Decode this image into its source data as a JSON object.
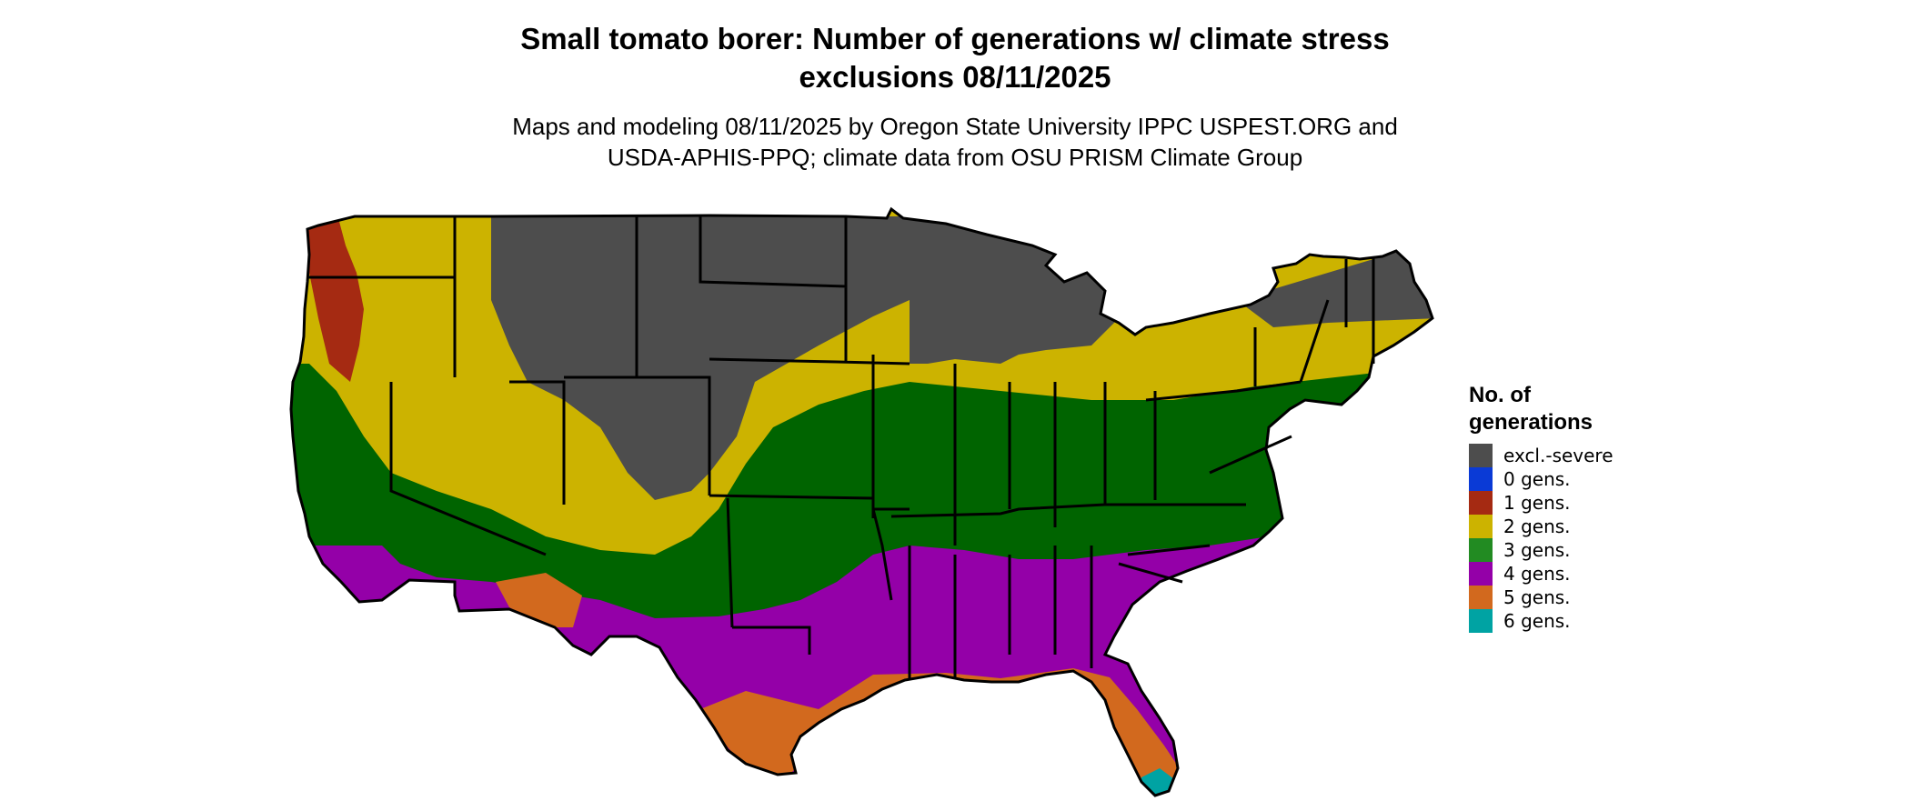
{
  "title_line1": "Small tomato borer: Number of generations w/ climate stress",
  "title_line2": "exclusions 08/11/2025",
  "subtitle_line1": "Maps and modeling 08/11/2025 by Oregon State University IPPC USPEST.ORG and",
  "subtitle_line2": "USDA-APHIS-PPQ; climate data from OSU PRISM Climate Group",
  "legend": {
    "title_line1": "No. of",
    "title_line2": "generations",
    "items": [
      {
        "label": "excl.-severe",
        "color": "#4d4d4d"
      },
      {
        "label": "0 gens.",
        "color": "#0a3ad6"
      },
      {
        "label": "1 gens.",
        "color": "#a52a12"
      },
      {
        "label": "2 gens.",
        "color": "#ccb300"
      },
      {
        "label": "3 gens.",
        "color": "#228b22"
      },
      {
        "label": "4 gens.",
        "color": "#9400a8"
      },
      {
        "label": "5 gens.",
        "color": "#d2691e"
      },
      {
        "label": "6 gens.",
        "color": "#00a3a3"
      }
    ]
  }
}
